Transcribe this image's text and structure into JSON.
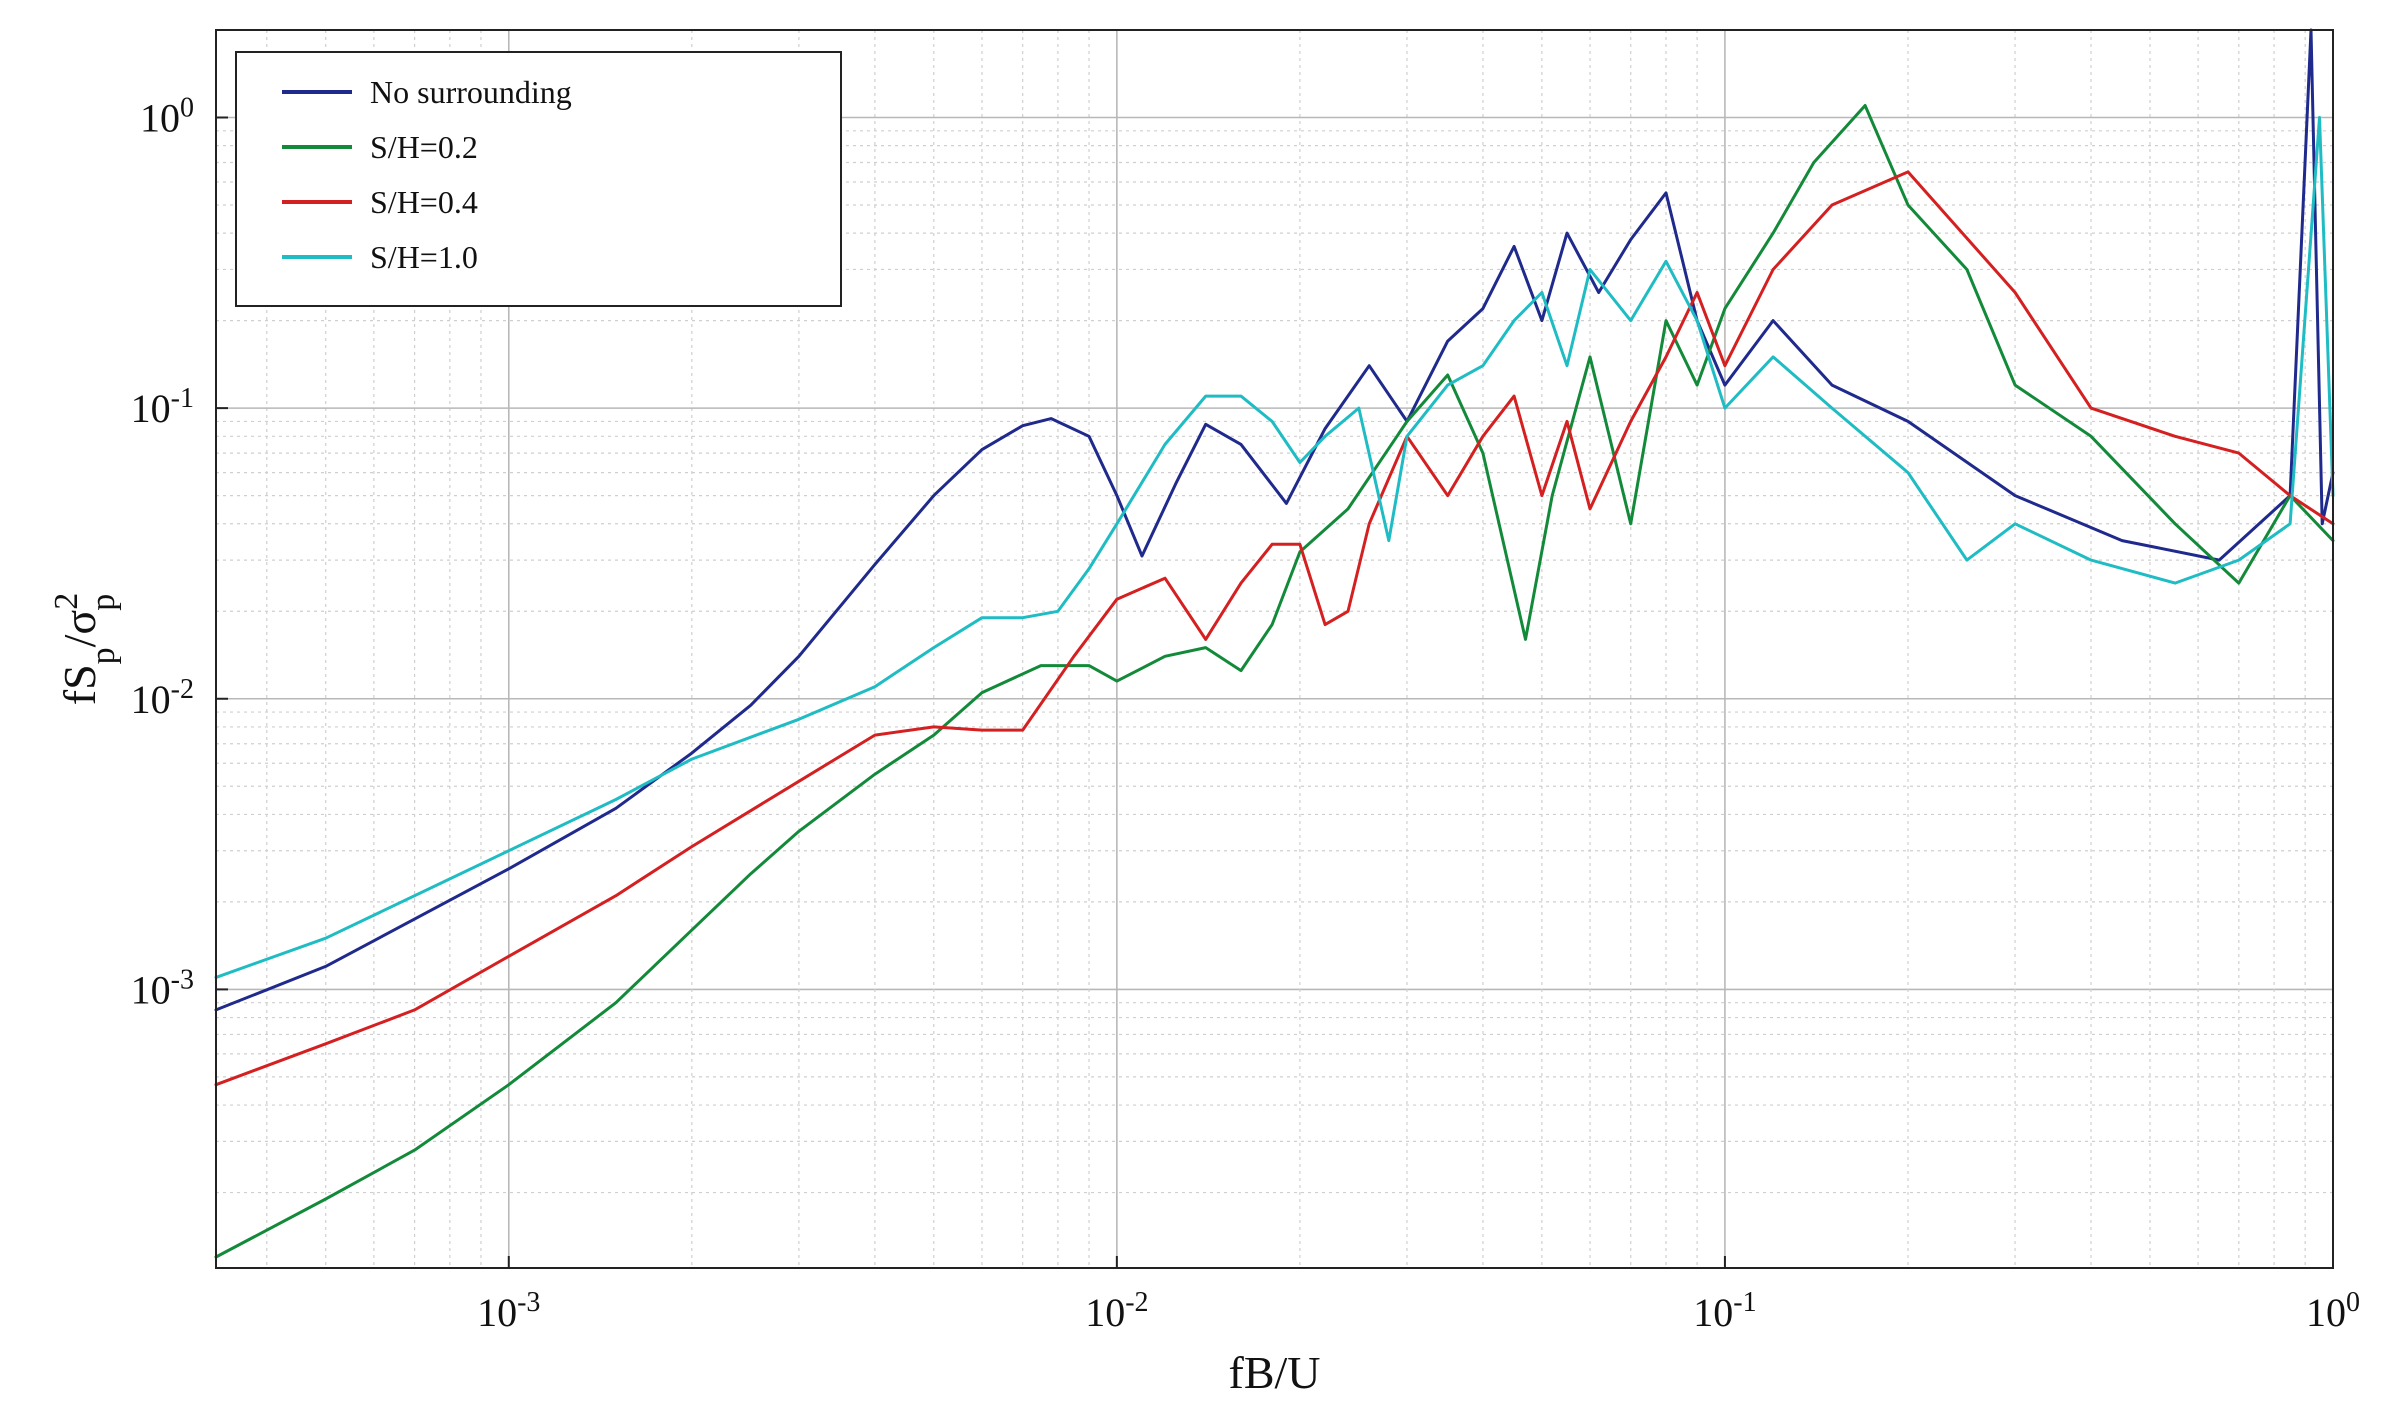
{
  "chart_data": {
    "type": "line",
    "title": "",
    "xlabel": "fB/U",
    "ylabel": {
      "main": "fS",
      "sub1": "p",
      "slash": "/σ",
      "sup": "2",
      "sub2": "p"
    },
    "x_scale": "log",
    "y_scale": "log",
    "xlim": [
      0.00033,
      1.0
    ],
    "ylim": [
      0.00011,
      2.0
    ],
    "grid": true,
    "legend_position": "top-left",
    "x_ticks": [
      {
        "value": 0.001,
        "base": "10",
        "exp": "-3"
      },
      {
        "value": 0.01,
        "base": "10",
        "exp": "-2"
      },
      {
        "value": 0.1,
        "base": "10",
        "exp": "-1"
      },
      {
        "value": 1,
        "base": "10",
        "exp": "0"
      }
    ],
    "y_ticks": [
      {
        "value": 0.001,
        "base": "10",
        "exp": "-3"
      },
      {
        "value": 0.01,
        "base": "10",
        "exp": "-2"
      },
      {
        "value": 0.1,
        "base": "10",
        "exp": "-1"
      },
      {
        "value": 1,
        "base": "10",
        "exp": "0"
      }
    ],
    "series": [
      {
        "name": "No surrounding",
        "color": "#1f2a8c",
        "x": [
          0.00033,
          0.0005,
          0.001,
          0.0015,
          0.002,
          0.0025,
          0.003,
          0.004,
          0.005,
          0.006,
          0.007,
          0.0078,
          0.009,
          0.01,
          0.011,
          0.0125,
          0.014,
          0.016,
          0.019,
          0.022,
          0.026,
          0.03,
          0.035,
          0.04,
          0.045,
          0.05,
          0.055,
          0.062,
          0.07,
          0.08,
          0.09,
          0.1,
          0.12,
          0.15,
          0.2,
          0.3,
          0.45,
          0.65,
          0.85,
          0.92,
          0.96,
          1.0
        ],
        "y": [
          0.00085,
          0.0012,
          0.0026,
          0.0042,
          0.0065,
          0.0095,
          0.014,
          0.029,
          0.05,
          0.072,
          0.087,
          0.092,
          0.08,
          0.05,
          0.031,
          0.055,
          0.088,
          0.075,
          0.047,
          0.085,
          0.14,
          0.09,
          0.17,
          0.22,
          0.36,
          0.2,
          0.4,
          0.25,
          0.38,
          0.55,
          0.2,
          0.12,
          0.2,
          0.12,
          0.09,
          0.05,
          0.035,
          0.03,
          0.05,
          2.0,
          0.04,
          0.06
        ]
      },
      {
        "name": "S/H=0.2",
        "color": "#138a3a",
        "x": [
          0.00033,
          0.0005,
          0.0007,
          0.001,
          0.0015,
          0.002,
          0.0025,
          0.003,
          0.004,
          0.005,
          0.006,
          0.0075,
          0.009,
          0.01,
          0.012,
          0.014,
          0.016,
          0.018,
          0.02,
          0.024,
          0.03,
          0.035,
          0.04,
          0.047,
          0.052,
          0.06,
          0.07,
          0.08,
          0.09,
          0.1,
          0.12,
          0.14,
          0.17,
          0.2,
          0.25,
          0.3,
          0.4,
          0.55,
          0.7,
          0.85,
          1.0
        ],
        "y": [
          0.00012,
          0.00019,
          0.00028,
          0.00047,
          0.0009,
          0.0016,
          0.0025,
          0.0035,
          0.0055,
          0.0075,
          0.0105,
          0.013,
          0.013,
          0.0115,
          0.014,
          0.015,
          0.0125,
          0.018,
          0.032,
          0.045,
          0.09,
          0.13,
          0.07,
          0.016,
          0.05,
          0.15,
          0.04,
          0.2,
          0.12,
          0.22,
          0.4,
          0.7,
          1.1,
          0.5,
          0.3,
          0.12,
          0.08,
          0.04,
          0.025,
          0.05,
          0.035
        ]
      },
      {
        "name": "S/H=0.4",
        "color": "#d42020",
        "x": [
          0.00033,
          0.0005,
          0.0007,
          0.001,
          0.0015,
          0.002,
          0.003,
          0.004,
          0.005,
          0.006,
          0.007,
          0.0085,
          0.01,
          0.012,
          0.014,
          0.016,
          0.018,
          0.02,
          0.022,
          0.024,
          0.026,
          0.03,
          0.035,
          0.04,
          0.045,
          0.05,
          0.055,
          0.06,
          0.07,
          0.08,
          0.09,
          0.1,
          0.12,
          0.15,
          0.2,
          0.3,
          0.4,
          0.55,
          0.7,
          0.85,
          1.0
        ],
        "y": [
          0.00047,
          0.00065,
          0.00085,
          0.0013,
          0.0021,
          0.0031,
          0.0052,
          0.0075,
          0.008,
          0.0078,
          0.0078,
          0.014,
          0.022,
          0.026,
          0.016,
          0.025,
          0.034,
          0.034,
          0.018,
          0.02,
          0.04,
          0.08,
          0.05,
          0.08,
          0.11,
          0.05,
          0.09,
          0.045,
          0.09,
          0.15,
          0.25,
          0.14,
          0.3,
          0.5,
          0.65,
          0.25,
          0.1,
          0.08,
          0.07,
          0.05,
          0.04
        ]
      },
      {
        "name": "S/H=1.0",
        "color": "#1fbcc4",
        "x": [
          0.00033,
          0.0005,
          0.001,
          0.0015,
          0.002,
          0.003,
          0.004,
          0.005,
          0.006,
          0.007,
          0.008,
          0.009,
          0.01,
          0.012,
          0.014,
          0.016,
          0.018,
          0.02,
          0.022,
          0.025,
          0.028,
          0.03,
          0.035,
          0.04,
          0.045,
          0.05,
          0.055,
          0.06,
          0.07,
          0.08,
          0.09,
          0.1,
          0.12,
          0.15,
          0.2,
          0.25,
          0.3,
          0.4,
          0.55,
          0.7,
          0.85,
          0.95,
          1.0
        ],
        "y": [
          0.0011,
          0.0015,
          0.003,
          0.0045,
          0.0062,
          0.0085,
          0.011,
          0.015,
          0.019,
          0.019,
          0.02,
          0.028,
          0.04,
          0.075,
          0.11,
          0.11,
          0.09,
          0.065,
          0.08,
          0.1,
          0.035,
          0.08,
          0.12,
          0.14,
          0.2,
          0.25,
          0.14,
          0.3,
          0.2,
          0.32,
          0.2,
          0.1,
          0.15,
          0.1,
          0.06,
          0.03,
          0.04,
          0.03,
          0.025,
          0.03,
          0.04,
          1.0,
          0.05
        ]
      }
    ]
  }
}
